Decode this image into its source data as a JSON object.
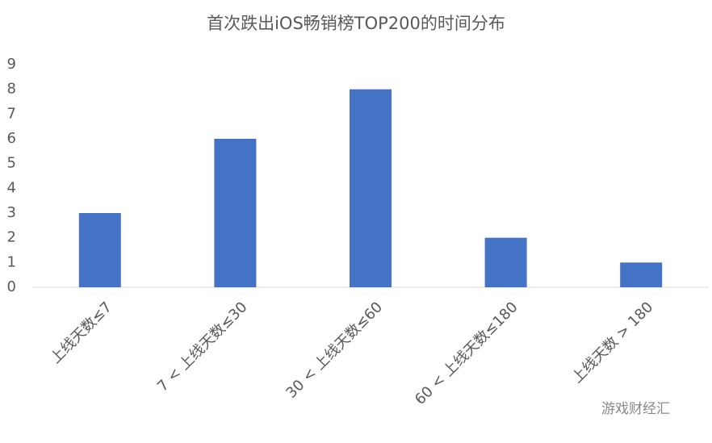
{
  "chart_data": {
    "type": "bar",
    "title": "首次跌出iOS畅销榜TOP200的时间分布",
    "categories": [
      "上线天数≤7",
      "7 < 上线天数≤30",
      "30 < 上线天数≤60",
      "60 < 上线天数≤180",
      "上线天数 > 180"
    ],
    "values": [
      3,
      6,
      8,
      2,
      1
    ],
    "color": "#4472c4",
    "ylim": [
      0,
      9
    ],
    "yticks": [
      0,
      1,
      2,
      3,
      4,
      5,
      6,
      7,
      8,
      9
    ],
    "grid": false,
    "watermark": "游戏财经汇"
  }
}
